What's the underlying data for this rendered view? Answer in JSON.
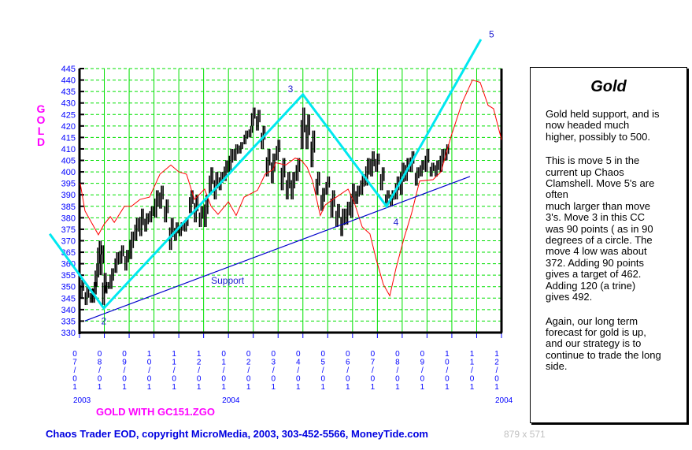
{
  "chart_data": {
    "type": "line",
    "title": "GOLD",
    "ylabel": "GOLD",
    "ylim": [
      330,
      445
    ],
    "yticks": [
      445,
      440,
      435,
      430,
      425,
      420,
      415,
      410,
      405,
      400,
      395,
      390,
      385,
      380,
      375,
      370,
      365,
      360,
      355,
      350,
      345,
      340,
      335,
      330
    ],
    "x_unit": "months since 07/01/2003",
    "xlim": [
      0,
      17
    ],
    "xtick_labels": [
      "07/01",
      "08/01",
      "09/01",
      "10/01",
      "11/01",
      "12/01",
      "01/01",
      "02/01",
      "03/01",
      "04/01",
      "05/01",
      "06/01",
      "07/01",
      "08/01",
      "09/01",
      "10/01",
      "11/01",
      "12/01"
    ],
    "year_labels": [
      {
        "x": 0,
        "label": "2003"
      },
      {
        "x": 6,
        "label": "2004"
      },
      {
        "x": 17,
        "label": "2004"
      }
    ],
    "grid": true,
    "price_bars": [
      [
        0.1,
        345,
        353
      ],
      [
        0.3,
        342,
        350
      ],
      [
        0.5,
        343,
        349
      ],
      [
        0.6,
        343,
        352
      ],
      [
        0.7,
        350,
        360
      ],
      [
        0.8,
        360,
        370
      ],
      [
        0.9,
        355,
        368
      ],
      [
        1.0,
        342,
        356
      ],
      [
        1.1,
        347,
        352
      ],
      [
        1.3,
        349,
        358
      ],
      [
        1.5,
        356,
        365
      ],
      [
        1.7,
        360,
        368
      ],
      [
        1.9,
        357,
        366
      ],
      [
        2.1,
        362,
        374
      ],
      [
        2.3,
        370,
        380
      ],
      [
        2.5,
        372,
        384
      ],
      [
        2.7,
        374,
        382
      ],
      [
        2.9,
        378,
        385
      ],
      [
        3.1,
        380,
        392
      ],
      [
        3.3,
        384,
        394
      ],
      [
        3.5,
        378,
        388
      ],
      [
        3.7,
        366,
        380
      ],
      [
        3.9,
        370,
        378
      ],
      [
        4.1,
        372,
        378
      ],
      [
        4.3,
        374,
        380
      ],
      [
        4.5,
        382,
        392
      ],
      [
        4.7,
        378,
        390
      ],
      [
        4.9,
        376,
        385
      ],
      [
        5.1,
        376,
        390
      ],
      [
        5.3,
        390,
        402
      ],
      [
        5.5,
        388,
        400
      ],
      [
        5.7,
        392,
        400
      ],
      [
        5.9,
        396,
        405
      ],
      [
        6.1,
        400,
        410
      ],
      [
        6.3,
        405,
        412
      ],
      [
        6.5,
        408,
        413
      ],
      [
        6.7,
        412,
        418
      ],
      [
        6.9,
        415,
        420
      ],
      [
        7.0,
        420,
        428
      ],
      [
        7.2,
        418,
        427
      ],
      [
        7.4,
        410,
        420
      ],
      [
        7.6,
        398,
        410
      ],
      [
        7.8,
        395,
        408
      ],
      [
        8.0,
        405,
        414
      ],
      [
        8.2,
        392,
        406
      ],
      [
        8.4,
        388,
        400
      ],
      [
        8.6,
        388,
        400
      ],
      [
        8.8,
        396,
        406
      ],
      [
        9.0,
        410,
        428
      ],
      [
        9.2,
        410,
        425
      ],
      [
        9.4,
        402,
        418
      ],
      [
        9.6,
        390,
        400
      ],
      [
        9.8,
        383,
        393
      ],
      [
        10.0,
        390,
        398
      ],
      [
        10.2,
        380,
        392
      ],
      [
        10.4,
        376,
        386
      ],
      [
        10.6,
        372,
        384
      ],
      [
        10.8,
        377,
        387
      ],
      [
        11.0,
        380,
        395
      ],
      [
        11.2,
        386,
        394
      ],
      [
        11.4,
        390,
        399
      ],
      [
        11.6,
        394,
        406
      ],
      [
        11.8,
        398,
        409
      ],
      [
        12.0,
        400,
        408
      ],
      [
        12.2,
        392,
        402
      ],
      [
        12.4,
        386,
        392
      ],
      [
        12.6,
        385,
        392
      ],
      [
        12.8,
        388,
        398
      ],
      [
        13.0,
        390,
        404
      ],
      [
        13.2,
        396,
        406
      ],
      [
        13.4,
        400,
        409
      ],
      [
        13.6,
        394,
        402
      ],
      [
        13.8,
        398,
        405
      ],
      [
        14.0,
        400,
        410
      ],
      [
        14.2,
        398,
        404
      ],
      [
        14.4,
        398,
        405
      ],
      [
        14.6,
        400,
        410
      ],
      [
        14.8,
        405,
        412
      ]
    ],
    "oscillator": [
      [
        0.03,
        395
      ],
      [
        0.22,
        383
      ],
      [
        0.76,
        372.6
      ],
      [
        0.98,
        377
      ],
      [
        1.24,
        380.5
      ],
      [
        1.4,
        378
      ],
      [
        1.81,
        385
      ],
      [
        2.09,
        385
      ],
      [
        2.44,
        388
      ],
      [
        2.82,
        389
      ],
      [
        3.24,
        399
      ],
      [
        3.68,
        403
      ],
      [
        4.0,
        400
      ],
      [
        4.31,
        399
      ],
      [
        4.63,
        388
      ],
      [
        5.04,
        392.5
      ],
      [
        5.3,
        385
      ],
      [
        5.58,
        381.5
      ],
      [
        6.0,
        387
      ],
      [
        6.31,
        381
      ],
      [
        6.63,
        389
      ],
      [
        7.17,
        392
      ],
      [
        7.48,
        399
      ],
      [
        7.8,
        401
      ],
      [
        7.9,
        404
      ],
      [
        8.31,
        403
      ],
      [
        8.69,
        406
      ],
      [
        8.94,
        405
      ],
      [
        9.17,
        402
      ],
      [
        9.39,
        396
      ],
      [
        9.7,
        381
      ],
      [
        9.9,
        385.6
      ],
      [
        10.21,
        388
      ],
      [
        10.82,
        392.5
      ],
      [
        11.07,
        386.6
      ],
      [
        11.39,
        376
      ],
      [
        11.7,
        373
      ],
      [
        11.96,
        361.6
      ],
      [
        12.24,
        351
      ],
      [
        12.5,
        346
      ],
      [
        12.75,
        358
      ],
      [
        13.07,
        371
      ],
      [
        13.38,
        382
      ],
      [
        13.7,
        396
      ],
      [
        14.24,
        396.6
      ],
      [
        14.56,
        400
      ],
      [
        14.97,
        415.5
      ],
      [
        15.41,
        430
      ],
      [
        15.83,
        440
      ],
      [
        16.14,
        439
      ],
      [
        16.46,
        429
      ],
      [
        16.68,
        427.5
      ],
      [
        17.0,
        414
      ]
    ],
    "wave_line": [
      [
        -1.2,
        373
      ],
      [
        0.98,
        340.6
      ],
      [
        9.0,
        433.7
      ],
      [
        12.37,
        385
      ],
      [
        16.17,
        457.7
      ]
    ],
    "wave_labels": [
      {
        "label": "2",
        "x": 0.98,
        "y": 335
      },
      {
        "label": "3",
        "x": 8.5,
        "y": 436
      },
      {
        "label": "4",
        "x": 12.75,
        "y": 378
      },
      {
        "label": "5",
        "x": 16.6,
        "y": 460
      }
    ],
    "support_line": [
      [
        0.22,
        335.1
      ],
      [
        15.73,
        398
      ]
    ],
    "support_label": {
      "label": "Support",
      "x": 5.3,
      "y": 352.7
    },
    "colors": {
      "bars": "#000000",
      "oscillator": "#ff0000",
      "wave": "#00e8f0",
      "support": "#0000cc",
      "grid_v": "#00e000",
      "grid_h": "#00e000",
      "axis_text": "#0000ff"
    }
  },
  "gold_letters": [
    "G",
    "O",
    "L",
    "D"
  ],
  "subtitle": "GOLD WITH GC151.ZGO",
  "footer": "Chaos Trader EOD, copyright MicroMedia, 2003, 303-452-5566, MoneyTide.com",
  "dimensions": "879 x 571",
  "commentary": {
    "title": "Gold",
    "paragraphs": [
      [
        "Gold held support, and is",
        "now headed much",
        "higher, possibly to 500."
      ],
      [
        "This is move 5 in the",
        "current up Chaos",
        "Clamshell. Move 5's are",
        "often",
        "much larger than move",
        "3's.  Move 3 in this CC",
        "was 90 points ( as in 90",
        "degrees of a circle. The",
        "move 4 low was about",
        "372.  Adding 90 points",
        "gives a target of 462.",
        "Adding 120 (a trine)",
        "gives 492."
      ],
      [
        "Again, our long term",
        "forecast for gold is up,",
        "and our strategy is to",
        "continue to trade the long",
        "side."
      ]
    ]
  }
}
